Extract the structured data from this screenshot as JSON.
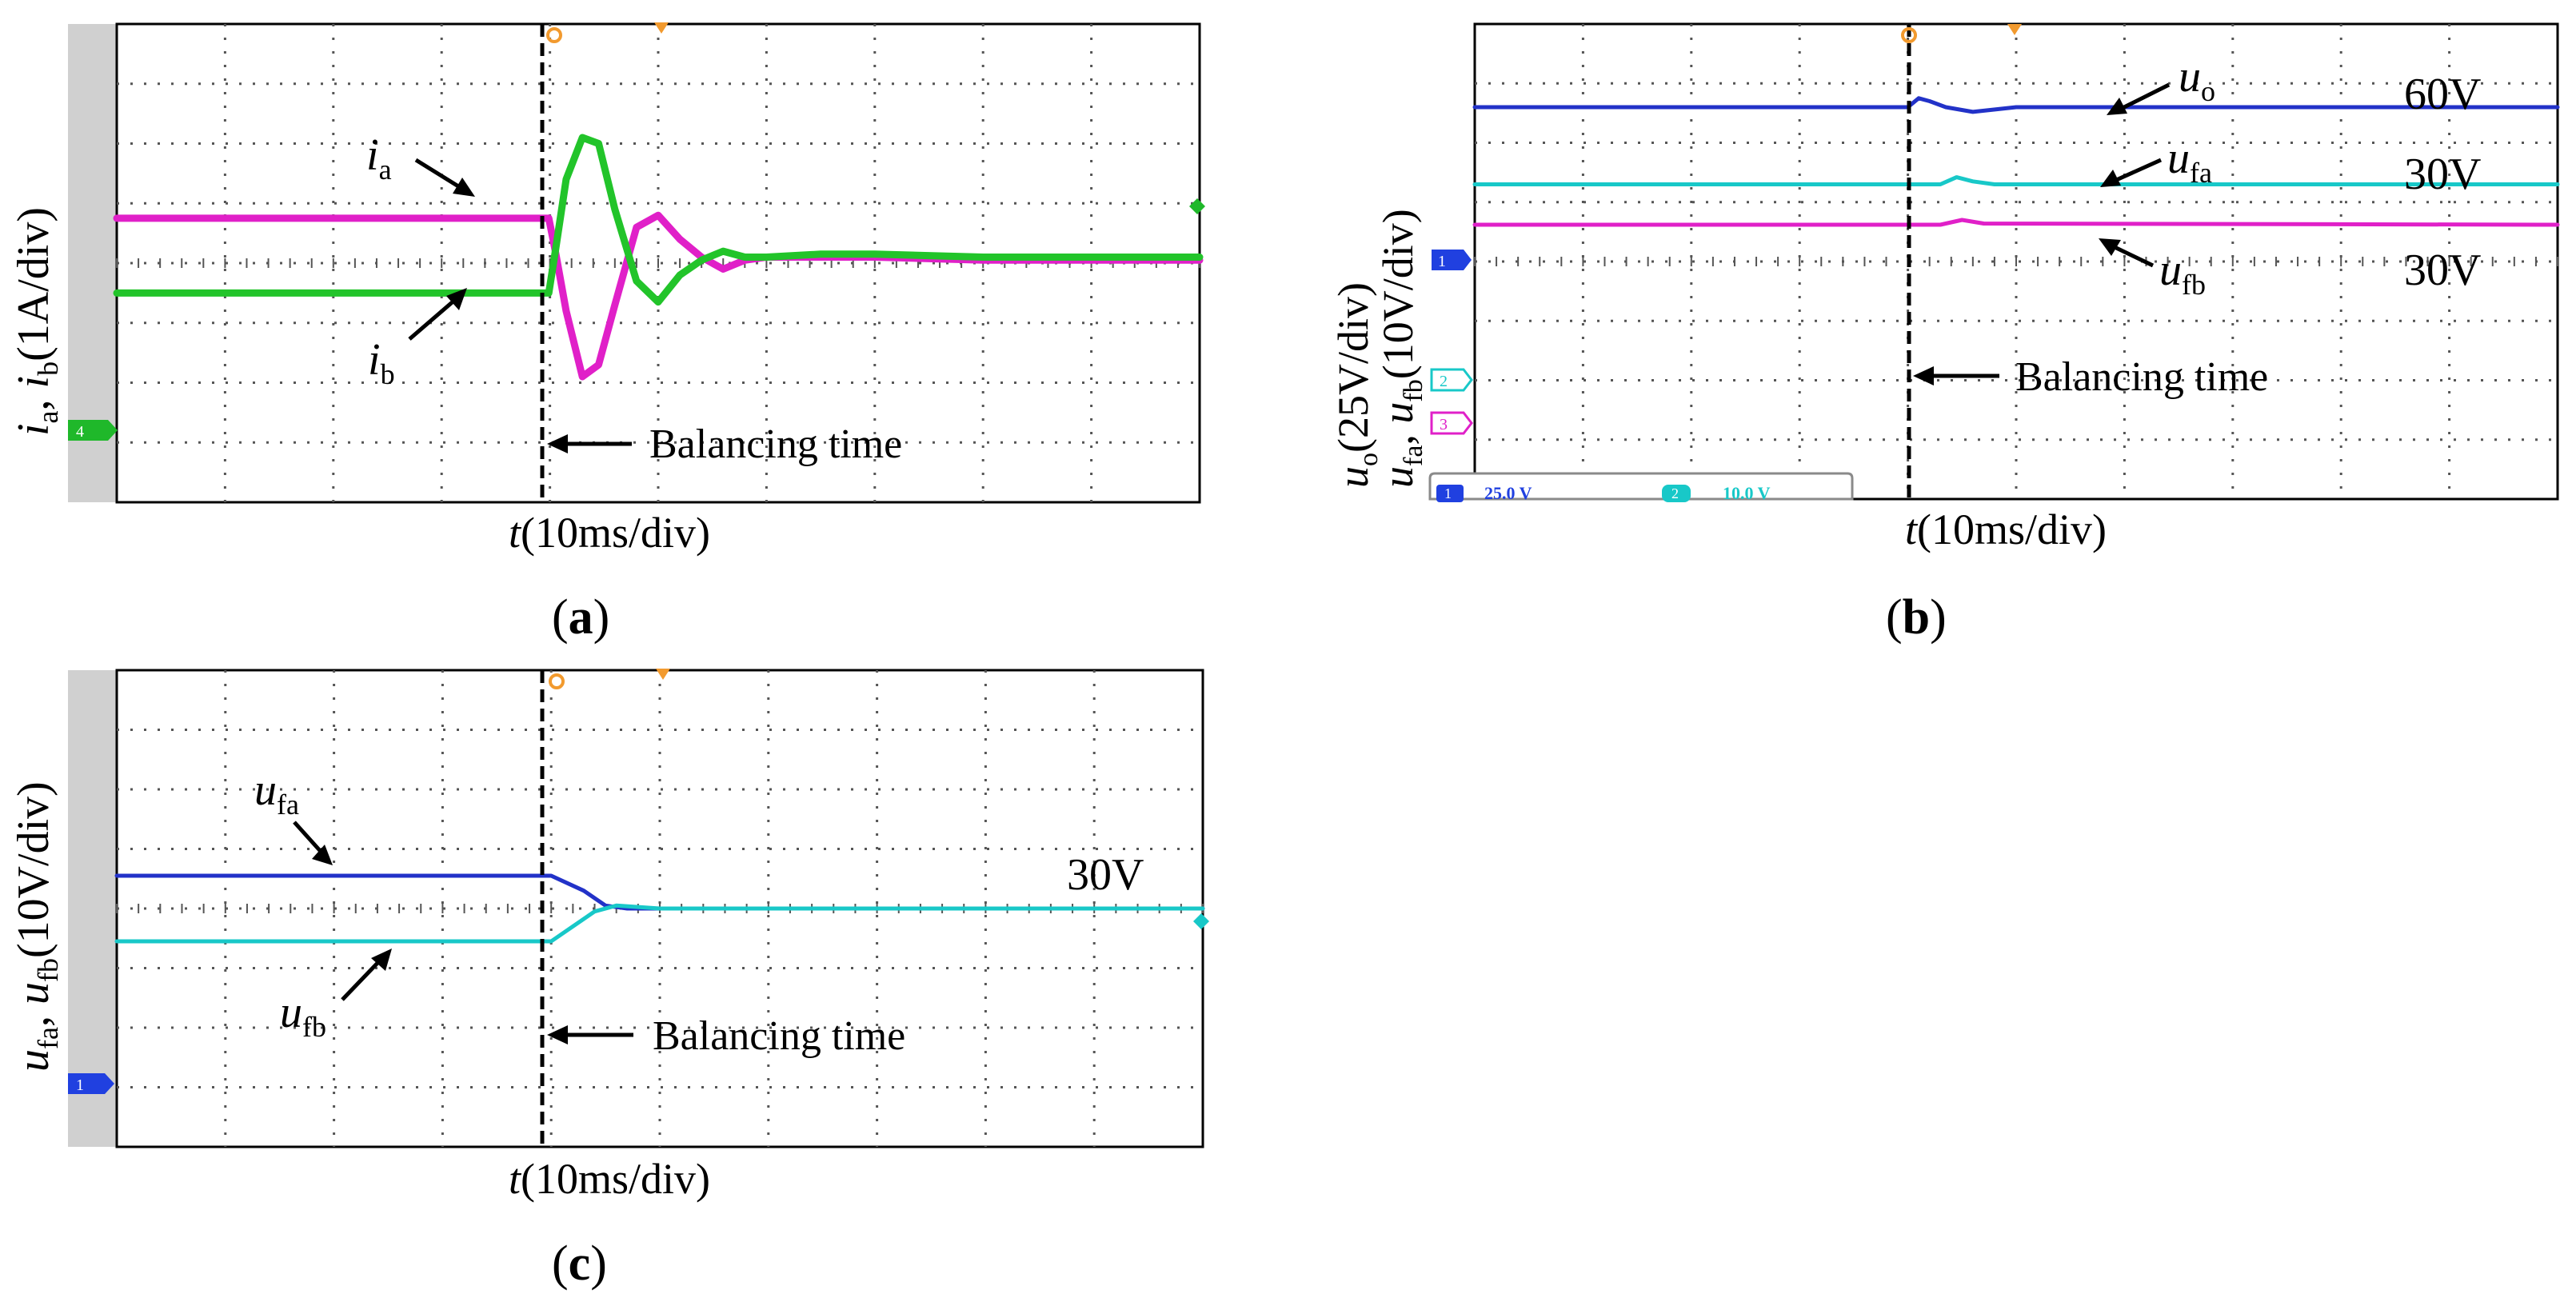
{
  "figure": {
    "balancing_label": "Balancing time",
    "panels": [
      {
        "id": "a",
        "caption": "a",
        "xlabel_var": "t",
        "xlabel_unit": "(10ms/div)",
        "ylabel_parts": [
          [
            "i",
            "a",
            ", "
          ],
          [
            "i",
            "b",
            "(1A/div)"
          ]
        ],
        "series": [
          {
            "name": "i",
            "sub": "a",
            "color": "#e020c8"
          },
          {
            "name": "i",
            "sub": "b",
            "color": "#22c42a"
          }
        ],
        "level_labels": [],
        "channel_markers": [
          {
            "label": "4",
            "color": "#1fb82a"
          }
        ],
        "has_status_bar": false
      },
      {
        "id": "b",
        "caption": "b",
        "xlabel_var": "t",
        "xlabel_unit": "(10ms/div)",
        "ylabel_parts": [
          [
            "u",
            "o",
            "(25V/div)"
          ],
          [
            "u",
            "fa",
            ", "
          ],
          [
            "u",
            "fb",
            "(10V/div)"
          ]
        ],
        "series": [
          {
            "name": "u",
            "sub": "o",
            "color": "#2232c8"
          },
          {
            "name": "u",
            "sub": "fa",
            "color": "#18c8c8"
          },
          {
            "name": "u",
            "sub": "fb",
            "color": "#e020c8"
          }
        ],
        "level_labels": [
          "60V",
          "30V",
          "30V"
        ],
        "channel_markers": [
          {
            "label": "1",
            "color": "#2040e0"
          },
          {
            "label": "2",
            "color": "#18c8c8"
          },
          {
            "label": "3",
            "color": "#e020c8"
          }
        ],
        "has_status_bar": true,
        "status_bar": [
          {
            "ch": "1",
            "value": "25.0 V"
          },
          {
            "ch": "2",
            "value": "10.0 V"
          }
        ]
      },
      {
        "id": "c",
        "caption": "c",
        "xlabel_var": "t",
        "xlabel_unit": "(10ms/div)",
        "ylabel_parts": [
          [
            "u",
            "fa",
            ", "
          ],
          [
            "u",
            "fb",
            "(10V/div)"
          ]
        ],
        "series": [
          {
            "name": "u",
            "sub": "fa",
            "color": "#2232c8"
          },
          {
            "name": "u",
            "sub": "fb",
            "color": "#18c8c8"
          }
        ],
        "level_labels": [
          "30V"
        ],
        "channel_markers": [
          {
            "label": "1",
            "color": "#2040e0"
          }
        ],
        "has_status_bar": false
      }
    ]
  },
  "chart_data": [
    {
      "type": "line",
      "title": "(a)",
      "xlabel": "t(10ms/div)",
      "ylabel": "ia, ib(1A/div)",
      "x_unit": "div",
      "y_unit": "div",
      "xlim": [
        0,
        10
      ],
      "ylim": [
        0,
        8
      ],
      "balancing_time_div": 4,
      "series": [
        {
          "name": "ia",
          "x": [
            0,
            3.99,
            4.05,
            4.15,
            4.3,
            4.45,
            4.6,
            4.8,
            5.0,
            5.2,
            5.4,
            5.6,
            5.8,
            6.0,
            6.5,
            7,
            8,
            10
          ],
          "y": [
            4.75,
            4.75,
            4.2,
            3.2,
            2.1,
            2.3,
            3.3,
            4.6,
            4.8,
            4.4,
            4.1,
            3.9,
            4.05,
            4.1,
            4.1,
            4.1,
            4.05,
            4.05
          ]
        },
        {
          "name": "ib",
          "x": [
            0,
            3.99,
            4.05,
            4.15,
            4.3,
            4.45,
            4.6,
            4.8,
            5.0,
            5.2,
            5.4,
            5.6,
            5.8,
            6.0,
            6.5,
            7,
            8,
            10
          ],
          "y": [
            3.5,
            3.5,
            4.2,
            5.4,
            6.1,
            6.0,
            4.9,
            3.7,
            3.35,
            3.8,
            4.05,
            4.2,
            4.1,
            4.1,
            4.15,
            4.15,
            4.1,
            4.1
          ]
        }
      ]
    },
    {
      "type": "line",
      "title": "(b)",
      "xlabel": "t(10ms/div)",
      "ylabel": "uo(25V/div), ufa, ufb(10V/div)",
      "x_unit": "div",
      "y_unit": "div",
      "xlim": [
        0,
        10
      ],
      "ylim": [
        0,
        8
      ],
      "balancing_time_div": 4,
      "series": [
        {
          "name": "uo",
          "x": [
            0,
            4,
            4.1,
            4.2,
            4.35,
            4.6,
            5,
            10
          ],
          "y": [
            6.6,
            6.6,
            6.75,
            6.7,
            6.6,
            6.52,
            6.6,
            6.6
          ]
        },
        {
          "name": "ufa",
          "x": [
            0,
            4.3,
            4.45,
            4.6,
            4.8,
            10
          ],
          "y": [
            5.3,
            5.3,
            5.42,
            5.35,
            5.3,
            5.3
          ]
        },
        {
          "name": "ufb",
          "x": [
            0,
            4.3,
            4.5,
            4.7,
            10
          ],
          "y": [
            4.62,
            4.62,
            4.7,
            4.64,
            4.62
          ]
        }
      ],
      "annotations": [
        "60V",
        "30V",
        "30V"
      ]
    },
    {
      "type": "line",
      "title": "(c)",
      "xlabel": "t(10ms/div)",
      "ylabel": "ufa, ufb(10V/div)",
      "x_unit": "div",
      "y_unit": "div",
      "xlim": [
        0,
        10
      ],
      "ylim": [
        0,
        8
      ],
      "balancing_time_div": 4,
      "series": [
        {
          "name": "ufa",
          "x": [
            0,
            4,
            4.3,
            4.5,
            4.7,
            5,
            10
          ],
          "y": [
            4.55,
            4.55,
            4.3,
            4.05,
            4.0,
            4.0,
            4.0
          ]
        },
        {
          "name": "ufb",
          "x": [
            0,
            4,
            4.2,
            4.4,
            4.6,
            5,
            10
          ],
          "y": [
            3.45,
            3.45,
            3.7,
            3.95,
            4.05,
            4.0,
            4.0
          ]
        }
      ],
      "annotations": [
        "30V"
      ]
    }
  ]
}
